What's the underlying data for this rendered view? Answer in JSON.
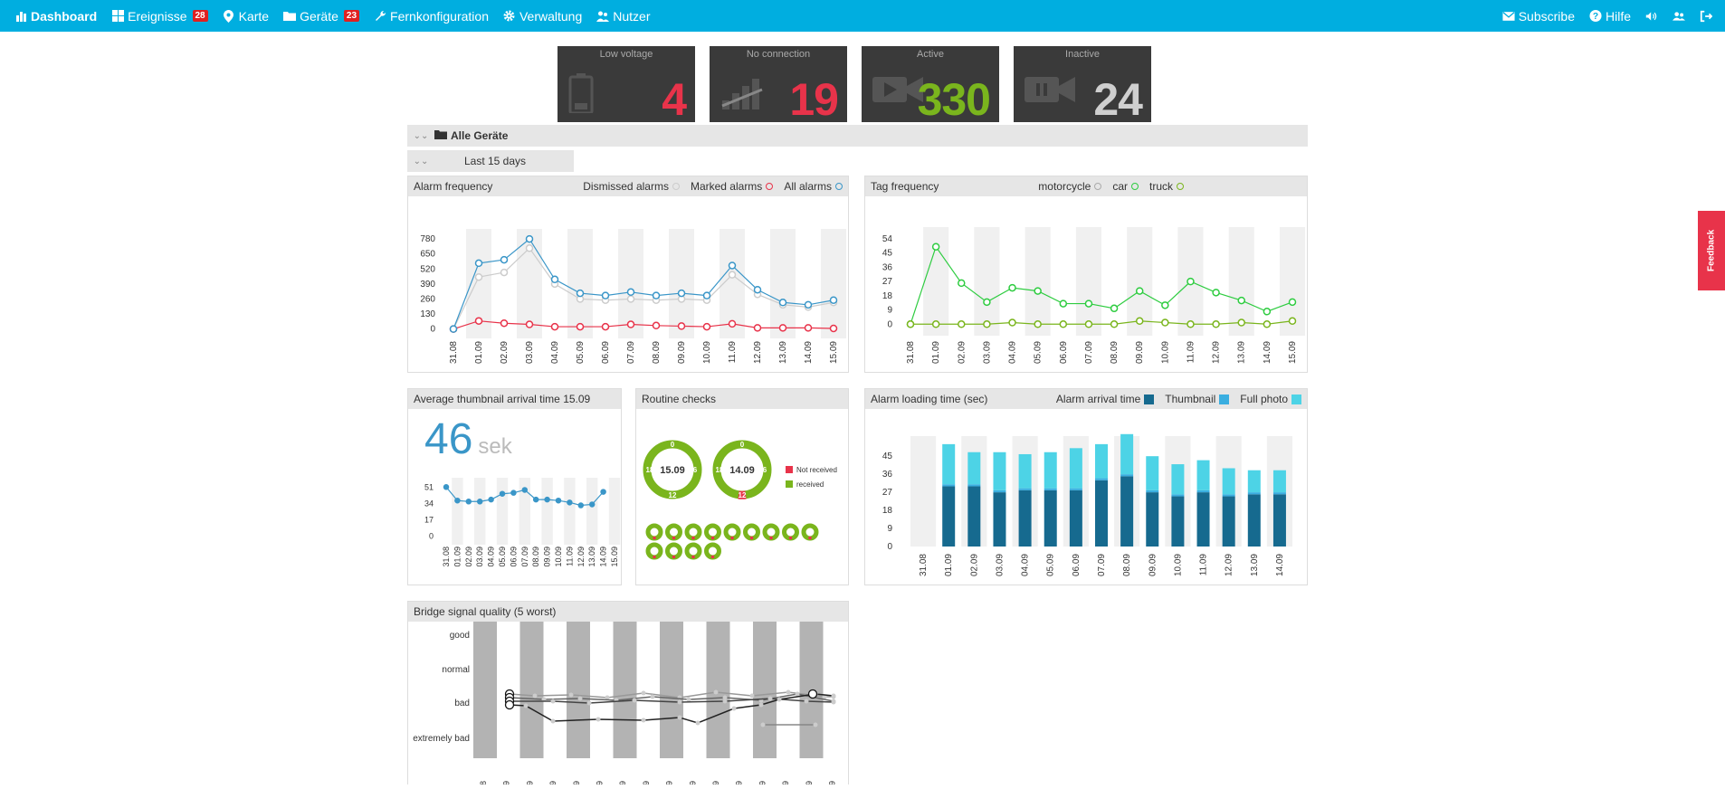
{
  "nav": {
    "left": [
      {
        "label": "Dashboard",
        "icon": "bar-chart-icon",
        "active": true
      },
      {
        "label": "Ereignisse",
        "icon": "grid-icon",
        "badge": "28"
      },
      {
        "label": "Karte",
        "icon": "map-pin-icon"
      },
      {
        "label": "Geräte",
        "icon": "folder-icon",
        "badge": "23"
      },
      {
        "label": "Fernkonfiguration",
        "icon": "wrench-icon"
      },
      {
        "label": "Verwaltung",
        "icon": "gear-icon"
      },
      {
        "label": "Nutzer",
        "icon": "users-icon"
      }
    ],
    "subscribe": "Subscribe",
    "help": "Hilfe"
  },
  "stats": [
    {
      "title": "Low voltage",
      "value": "4",
      "color": "#e8334a",
      "icon": "battery-icon"
    },
    {
      "title": "No connection",
      "value": "19",
      "color": "#e8334a",
      "icon": "signal-off-icon"
    },
    {
      "title": "Active",
      "value": "330",
      "color": "#7ab51d",
      "icon": "video-play-icon"
    },
    {
      "title": "Inactive",
      "value": "24",
      "color": "#cfcfcf",
      "icon": "video-pause-icon"
    }
  ],
  "filters": {
    "group": "Alle Geräte",
    "range": "Last 15 days"
  },
  "dates": [
    "31.08",
    "01.09",
    "02.09",
    "03.09",
    "04.09",
    "05.09",
    "06.09",
    "07.09",
    "08.09",
    "09.09",
    "10.09",
    "11.09",
    "12.09",
    "13.09",
    "14.09",
    "15.09"
  ],
  "alarm": {
    "title": "Alarm frequency",
    "legend": [
      "Dismissed alarms",
      "Marked alarms",
      "All alarms"
    ],
    "colors": [
      "#cccccc",
      "#e8334a",
      "#3a96c8"
    ],
    "chart_data": {
      "type": "line",
      "yticks": [
        0,
        130,
        260,
        390,
        520,
        650,
        780
      ],
      "ylim": [
        -50,
        820
      ],
      "series": [
        {
          "name": "Dismissed alarms",
          "values": [
            0,
            450,
            490,
            700,
            390,
            260,
            250,
            260,
            250,
            260,
            250,
            470,
            300,
            210,
            190,
            230
          ]
        },
        {
          "name": "Marked alarms",
          "values": [
            0,
            70,
            50,
            40,
            20,
            20,
            20,
            40,
            30,
            25,
            20,
            45,
            10,
            10,
            10,
            5
          ]
        },
        {
          "name": "All alarms",
          "values": [
            0,
            570,
            600,
            780,
            430,
            310,
            290,
            320,
            290,
            310,
            290,
            550,
            340,
            230,
            210,
            250
          ]
        }
      ]
    }
  },
  "tags": {
    "title": "Tag frequency",
    "legend": [
      "motorcycle",
      "car",
      "truck"
    ],
    "colors": [
      "#aaaaaa",
      "#2ecc40",
      "#7ab51d"
    ],
    "chart_data": {
      "type": "line",
      "yticks": [
        0,
        9,
        18,
        27,
        36,
        45,
        54
      ],
      "ylim": [
        -5,
        58
      ],
      "series": [
        {
          "name": "car",
          "values": [
            0,
            49,
            26,
            14,
            23,
            21,
            13,
            13,
            10,
            21,
            12,
            27,
            20,
            15,
            8,
            14
          ]
        },
        {
          "name": "truck",
          "values": [
            0,
            0,
            0,
            0,
            1,
            0,
            0,
            0,
            0,
            2,
            1,
            0,
            0,
            1,
            0,
            2
          ]
        }
      ]
    }
  },
  "thumb": {
    "title": "Average thumbnail arrival time 15.09",
    "value": "46",
    "unit": "sek",
    "chart_data": {
      "type": "line",
      "yticks": [
        0,
        17,
        34,
        51
      ],
      "ylim": [
        -5,
        55
      ],
      "series": [
        {
          "name": "",
          "values": [
            51,
            37,
            36,
            36,
            38,
            44,
            45,
            48,
            38,
            38,
            37,
            35,
            32,
            33,
            46
          ]
        }
      ]
    }
  },
  "routine": {
    "title": "Routine checks",
    "rings": [
      {
        "label": "15.09"
      },
      {
        "label": "14.09"
      }
    ],
    "ring_labels": {
      "top": "0",
      "right": "6",
      "bottom": "12",
      "left": "18"
    },
    "legend": [
      {
        "label": "Not received",
        "color": "#e8334a"
      },
      {
        "label": "received",
        "color": "#7ab51d"
      }
    ],
    "small_rings": 13
  },
  "loading": {
    "title": "Alarm loading time (sec)",
    "legend": [
      "Alarm arrival time",
      "Thumbnail",
      "Full photo"
    ],
    "colors": [
      "#166a8f",
      "#3aaee0",
      "#4dd3e6"
    ],
    "chart_data": {
      "type": "bar",
      "yticks": [
        0,
        9,
        18,
        27,
        36,
        45
      ],
      "ylim": [
        0,
        55
      ],
      "categories": [
        "31.08",
        "01.09",
        "02.09",
        "03.09",
        "04.09",
        "05.09",
        "06.09",
        "07.09",
        "08.09",
        "09.09",
        "10.09",
        "11.09",
        "12.09",
        "13.09",
        "14.09"
      ],
      "series": [
        {
          "name": "Alarm arrival time",
          "values": [
            0,
            30,
            30,
            27,
            28,
            28,
            28,
            33,
            35,
            27,
            25,
            27,
            25,
            26,
            26
          ]
        },
        {
          "name": "Thumbnail",
          "values": [
            0,
            1,
            1,
            1,
            1,
            1,
            1,
            1,
            1,
            1,
            1,
            1,
            1,
            1,
            1
          ]
        },
        {
          "name": "Full photo",
          "values": [
            0,
            20,
            16,
            19,
            17,
            18,
            20,
            17,
            20,
            17,
            15,
            15,
            13,
            11,
            11
          ]
        }
      ]
    }
  },
  "bridge": {
    "title": "Bridge signal quality (5 worst)",
    "levels": [
      "good",
      "normal",
      "bad",
      "extremely bad"
    ]
  },
  "feedback": "Feedback"
}
